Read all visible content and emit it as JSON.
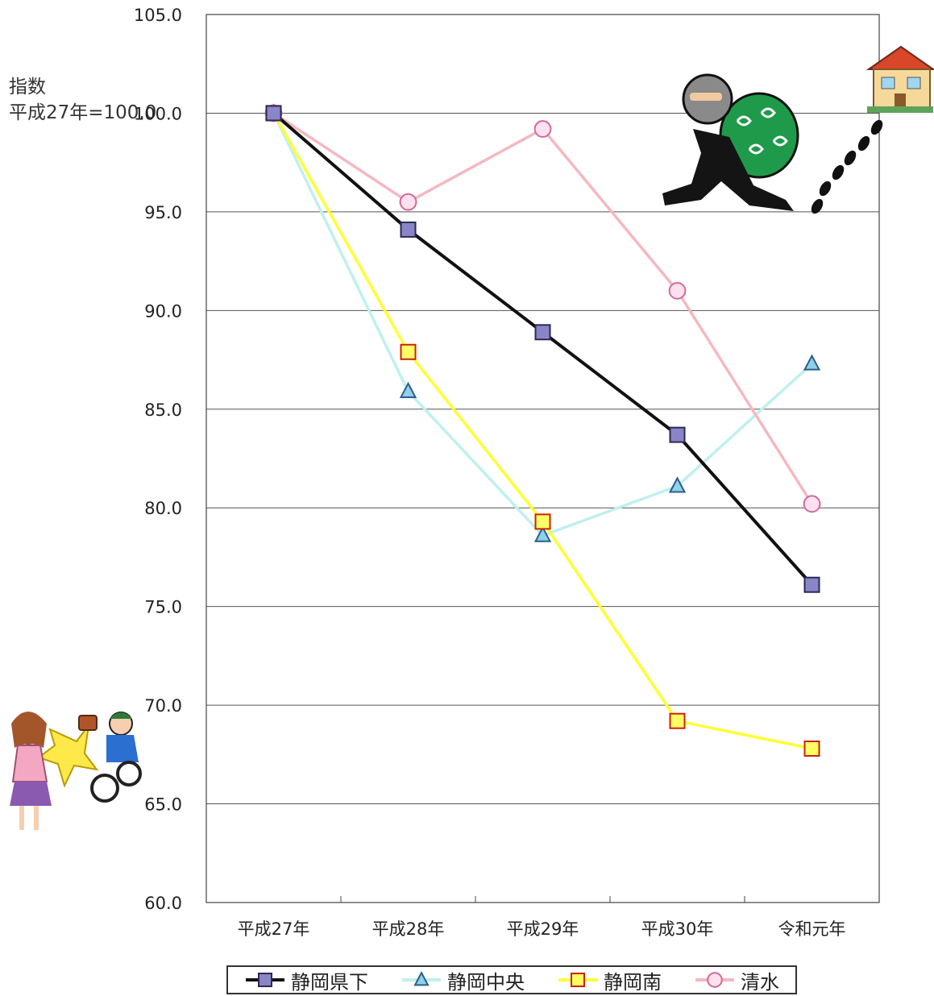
{
  "chart_data": {
    "type": "line",
    "title": "",
    "ylabel_lines": [
      "指数",
      "平成27年=100.0"
    ],
    "xlabel": "",
    "categories": [
      "平成27年",
      "平成28年",
      "平成29年",
      "平成30年",
      "令和元年"
    ],
    "ylim": [
      60.0,
      105.0
    ],
    "yticks": [
      "105.0",
      "100.0",
      "95.0",
      "90.0",
      "85.0",
      "80.0",
      "75.0",
      "70.0",
      "65.0",
      "60.0"
    ],
    "grid": true,
    "legend_position": "bottom",
    "series": [
      {
        "name": "静岡県下",
        "values": [
          100.0,
          94.1,
          88.9,
          83.7,
          76.1
        ],
        "color": "#111111",
        "marker": "square",
        "marker_fill": "#8a85c6",
        "marker_stroke": "#2a2a55"
      },
      {
        "name": "静岡中央",
        "values": [
          100.0,
          85.9,
          78.6,
          81.1,
          87.3
        ],
        "color": "#bff0ee",
        "marker": "triangle",
        "marker_fill": "#8fd0ea",
        "marker_stroke": "#2a5f8a"
      },
      {
        "name": "静岡南",
        "values": [
          100.0,
          87.9,
          79.3,
          69.2,
          67.8
        ],
        "color": "#ffff33",
        "marker": "square",
        "marker_fill": "#ffff66",
        "marker_stroke": "#cc2200"
      },
      {
        "name": "清水",
        "values": [
          100.0,
          95.5,
          99.2,
          91.0,
          80.2
        ],
        "color": "#f5b8c0",
        "marker": "circle",
        "marker_fill": "#fde1ee",
        "marker_stroke": "#cf6a9a"
      }
    ]
  },
  "decor": {
    "thief_icon": "burglar-icon",
    "house_icon": "house-icon",
    "footprints_icon": "footprints-icon",
    "snatch_icon": "bag-snatching-icon"
  }
}
